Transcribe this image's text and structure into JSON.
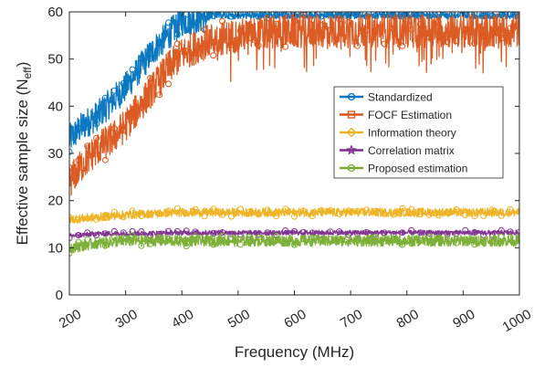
{
  "chart_data": {
    "type": "line",
    "title": "",
    "xlabel": "Frequency (MHz)",
    "ylabel": "Effective sample size (N",
    "ylabel_subscript": "eff",
    "ylabel_suffix": ")",
    "xlim": [
      200,
      1000
    ],
    "ylim": [
      0,
      60
    ],
    "x_ticks": [
      "200",
      "300",
      "400",
      "500",
      "600",
      "700",
      "800",
      "900",
      "1000"
    ],
    "y_ticks": [
      "0",
      "10",
      "20",
      "30",
      "40",
      "50",
      "60"
    ],
    "legend_position": "center-right",
    "series": [
      {
        "name": "Standardized",
        "color": "#0072BD",
        "marker": "circle",
        "x": [
          200,
          225,
          250,
          275,
          300,
          325,
          350,
          375,
          400,
          450,
          500,
          600,
          700,
          800,
          900,
          1000
        ],
        "values": [
          33,
          36,
          38,
          41,
          44,
          48,
          52,
          55,
          58,
          59,
          60,
          60,
          60,
          60,
          60,
          60
        ]
      },
      {
        "name": "FOCF Estimation",
        "color": "#D95319",
        "marker": "square",
        "x": [
          200,
          225,
          250,
          275,
          300,
          325,
          350,
          375,
          400,
          450,
          500,
          600,
          700,
          800,
          900,
          1000
        ],
        "values": [
          24,
          28,
          31,
          33,
          36,
          40,
          44,
          48,
          51,
          54,
          55,
          56,
          56,
          56,
          56,
          56
        ]
      },
      {
        "name": "Information theory",
        "color": "#EDB120",
        "marker": "diamond",
        "x": [
          200,
          250,
          300,
          400,
          500,
          600,
          700,
          800,
          900,
          1000
        ],
        "values": [
          16,
          16.5,
          17,
          17.5,
          17.5,
          17.5,
          17.5,
          17.5,
          17.5,
          17.5
        ]
      },
      {
        "name": "Correlation matrix",
        "color": "#7E2F8E",
        "marker": "star",
        "x": [
          200,
          250,
          300,
          400,
          500,
          600,
          700,
          800,
          900,
          1000
        ],
        "values": [
          12.5,
          13,
          13,
          13.2,
          13.2,
          13.2,
          13.2,
          13.2,
          13.2,
          13.2
        ]
      },
      {
        "name": "Proposed estimation",
        "color": "#77AC30",
        "marker": "circle",
        "x": [
          200,
          250,
          300,
          400,
          500,
          600,
          700,
          800,
          900,
          1000
        ],
        "values": [
          10,
          11,
          11.5,
          11.5,
          11.5,
          11.5,
          11.5,
          11.5,
          11.5,
          11.5
        ]
      }
    ]
  }
}
